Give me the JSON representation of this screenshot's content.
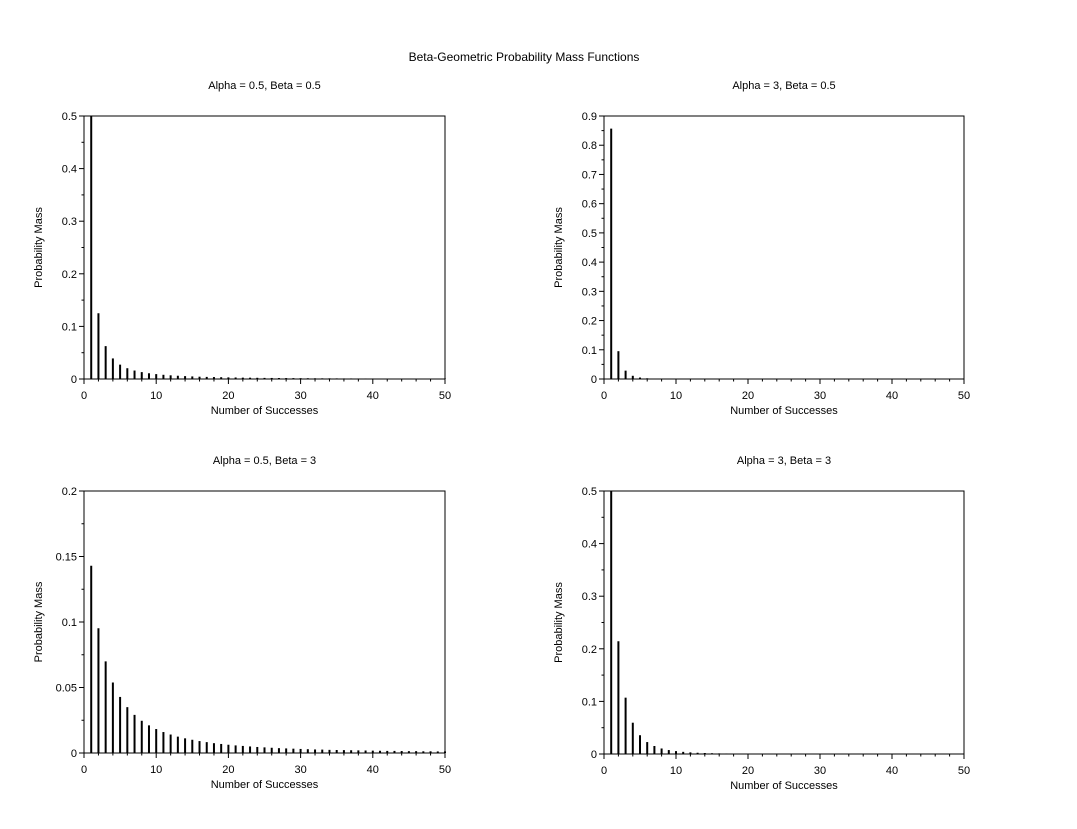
{
  "figure": {
    "title": "Beta-Geometric Probability Mass Functions"
  },
  "chart_data": [
    {
      "type": "bar",
      "title": "Alpha = 0.5, Beta = 0.5",
      "xlabel": "Number of Successes",
      "ylabel": "Probability Mass",
      "xlim": [
        0,
        50
      ],
      "ylim": [
        0,
        0.5
      ],
      "xticks": [
        "0",
        "10",
        "20",
        "30",
        "40",
        "50"
      ],
      "yticks": [
        "0",
        "0.1",
        "0.2",
        "0.3",
        "0.4",
        "0.5"
      ],
      "x": [
        1,
        2,
        3,
        4,
        5,
        6,
        7,
        8,
        9,
        10,
        11,
        12,
        13,
        14,
        15,
        16,
        17,
        18,
        19,
        20,
        21,
        22,
        23,
        24,
        25,
        26,
        27,
        28,
        29,
        30,
        31,
        32,
        33,
        34,
        35,
        36,
        37,
        38,
        39,
        40,
        41,
        42,
        43,
        44,
        45,
        46,
        47,
        48,
        49,
        50
      ],
      "values": [
        0.5,
        0.125,
        0.0625,
        0.0391,
        0.0273,
        0.0205,
        0.0161,
        0.0131,
        0.0109,
        0.0093,
        0.008,
        0.007,
        0.0062,
        0.0055,
        0.0049,
        0.0044,
        0.004,
        0.0037,
        0.0034,
        0.0031,
        0.0029,
        0.0026,
        0.0025,
        0.0023,
        0.0021,
        0.002,
        0.0019,
        0.0018,
        0.0017,
        0.0016,
        0.0015,
        0.0014,
        0.0013,
        0.0013,
        0.0012,
        0.0011,
        0.0011,
        0.001,
        0.001,
        0.001,
        0.0009,
        0.0009,
        0.0008,
        0.0008,
        0.0008,
        0.0008,
        0.0007,
        0.0007,
        0.0007,
        0.0007
      ]
    },
    {
      "type": "bar",
      "title": "Alpha = 3, Beta = 0.5",
      "xlabel": "Number of Successes",
      "ylabel": "Probability Mass",
      "xlim": [
        0,
        50
      ],
      "ylim": [
        0,
        0.9
      ],
      "xticks": [
        "0",
        "10",
        "20",
        "30",
        "40",
        "50"
      ],
      "yticks": [
        "0",
        "0.1",
        "0.2",
        "0.3",
        "0.4",
        "0.5",
        "0.6",
        "0.7",
        "0.8",
        "0.9"
      ],
      "x": [
        1,
        2,
        3,
        4,
        5,
        6,
        7,
        8,
        9,
        10,
        11,
        12,
        13,
        14,
        15,
        16,
        17,
        18,
        19,
        20,
        21,
        22,
        23,
        24,
        25,
        26,
        27,
        28,
        29,
        30,
        31,
        32,
        33,
        34,
        35,
        36,
        37,
        38,
        39,
        40,
        41,
        42,
        43,
        44,
        45,
        46,
        47,
        48,
        49,
        50
      ],
      "values": [
        0.857,
        0.0952,
        0.0286,
        0.011,
        0.005,
        0.0025,
        0.0014,
        0.0008,
        0.0005,
        0.0003,
        0.0002,
        0.0001,
        0.0001,
        0.0001,
        0,
        0,
        0,
        0,
        0,
        0,
        0,
        0,
        0,
        0,
        0,
        0,
        0,
        0,
        0,
        0,
        0,
        0,
        0,
        0,
        0,
        0,
        0,
        0,
        0,
        0,
        0,
        0,
        0,
        0,
        0,
        0,
        0,
        0,
        0,
        0
      ]
    },
    {
      "type": "bar",
      "title": "Alpha = 0.5, Beta = 3",
      "xlabel": "Number of Successes",
      "ylabel": "Probability Mass",
      "xlim": [
        0,
        50
      ],
      "ylim": [
        0,
        0.2
      ],
      "xticks": [
        "0",
        "10",
        "20",
        "30",
        "40",
        "50"
      ],
      "yticks": [
        "0",
        "0.05",
        "0.1",
        "0.15",
        "0.2"
      ],
      "x": [
        1,
        2,
        3,
        4,
        5,
        6,
        7,
        8,
        9,
        10,
        11,
        12,
        13,
        14,
        15,
        16,
        17,
        18,
        19,
        20,
        21,
        22,
        23,
        24,
        25,
        26,
        27,
        28,
        29,
        30,
        31,
        32,
        33,
        34,
        35,
        36,
        37,
        38,
        39,
        40,
        41,
        42,
        43,
        44,
        45,
        46,
        47,
        48,
        49,
        50
      ],
      "values": [
        0.1429,
        0.0952,
        0.0699,
        0.0538,
        0.0428,
        0.035,
        0.0291,
        0.0246,
        0.0211,
        0.0183,
        0.016,
        0.0141,
        0.0125,
        0.0112,
        0.0101,
        0.0091,
        0.0083,
        0.0075,
        0.0069,
        0.0063,
        0.0058,
        0.0054,
        0.005,
        0.0046,
        0.0043,
        0.004,
        0.0037,
        0.0035,
        0.0033,
        0.0031,
        0.0029,
        0.0027,
        0.0026,
        0.0024,
        0.0023,
        0.0022,
        0.0021,
        0.002,
        0.0019,
        0.0018,
        0.0017,
        0.0016,
        0.0016,
        0.0015,
        0.0014,
        0.0014,
        0.0013,
        0.0013,
        0.0012,
        0.0012
      ]
    },
    {
      "type": "bar",
      "title": "Alpha = 3, Beta = 3",
      "xlabel": "Number of Successes",
      "ylabel": "Probability Mass",
      "xlim": [
        0,
        50
      ],
      "ylim": [
        0,
        0.5
      ],
      "xticks": [
        "0",
        "10",
        "20",
        "30",
        "40",
        "50"
      ],
      "yticks": [
        "0",
        "0.1",
        "0.2",
        "0.3",
        "0.4",
        "0.5"
      ],
      "x": [
        1,
        2,
        3,
        4,
        5,
        6,
        7,
        8,
        9,
        10,
        11,
        12,
        13,
        14,
        15,
        16,
        17,
        18,
        19,
        20,
        21,
        22,
        23,
        24,
        25,
        26,
        27,
        28,
        29,
        30,
        31,
        32,
        33,
        34,
        35,
        36,
        37,
        38,
        39,
        40,
        41,
        42,
        43,
        44,
        45,
        46,
        47,
        48,
        49,
        50
      ],
      "values": [
        0.5,
        0.2143,
        0.1071,
        0.0595,
        0.0357,
        0.0227,
        0.0152,
        0.0105,
        0.0075,
        0.0055,
        0.0041,
        0.0031,
        0.0024,
        0.0019,
        0.0015,
        0.0012,
        0.001,
        0.0008,
        0.0007,
        0.0005,
        0.0005,
        0.0004,
        0.0003,
        0.0003,
        0.0002,
        0.0002,
        0.0002,
        0.0001,
        0.0001,
        0.0001,
        0.0001,
        0.0001,
        0.0001,
        0.0001,
        0,
        0,
        0,
        0,
        0,
        0,
        0,
        0,
        0,
        0,
        0,
        0,
        0,
        0,
        0,
        0
      ]
    }
  ]
}
